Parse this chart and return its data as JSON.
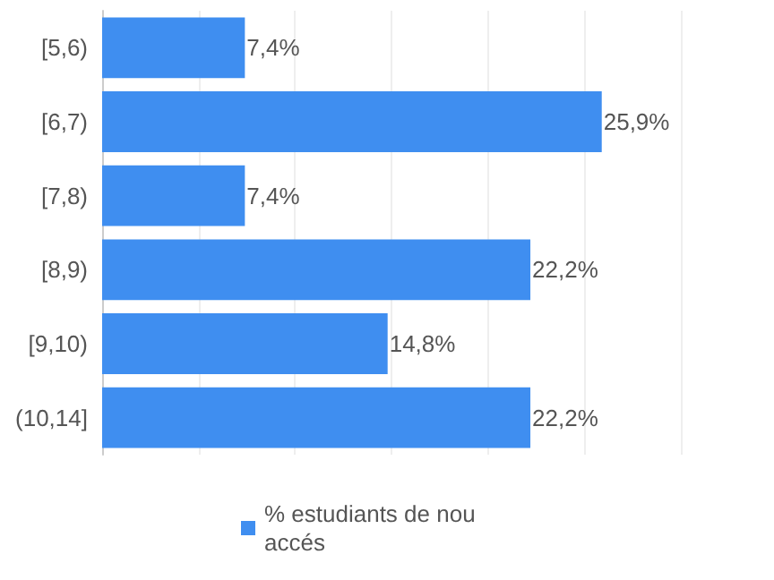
{
  "chart_data": {
    "type": "bar",
    "orientation": "horizontal",
    "categories": [
      "[5,6)",
      "[6,7)",
      "[7,8)",
      "[8,9)",
      "[9,10)",
      "(10,14]"
    ],
    "series": [
      {
        "name": "% estudiants de nou accés",
        "color": "#3f8ef0",
        "values": [
          7.4,
          25.9,
          7.4,
          22.2,
          14.8,
          22.2
        ],
        "value_labels": [
          "7,4%",
          "25,9%",
          "7,4%",
          "22,2%",
          "14,8%",
          "22,2%"
        ]
      }
    ],
    "grid": "x",
    "legend": "bottom",
    "tick_labels": "y"
  }
}
